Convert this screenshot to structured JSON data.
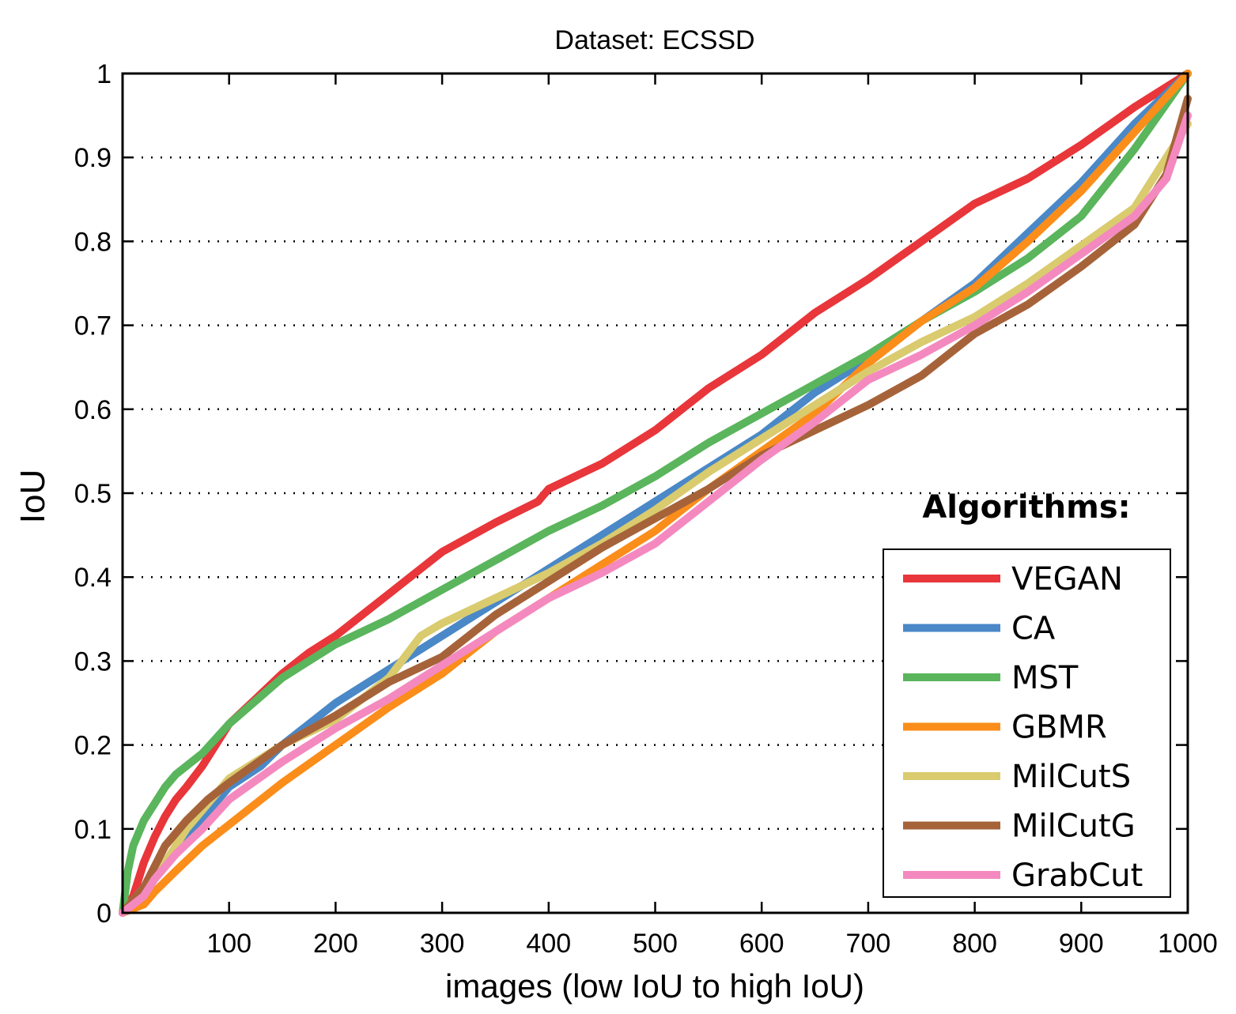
{
  "chart_data": {
    "type": "line",
    "title": "Dataset: ECSSD",
    "xlabel": "images (low IoU to high IoU)",
    "ylabel": "IoU",
    "xlim": [
      0,
      1000
    ],
    "ylim": [
      0,
      1
    ],
    "xticks": [
      100,
      200,
      300,
      400,
      500,
      600,
      700,
      800,
      900,
      1000
    ],
    "yticks": [
      0,
      0.1,
      0.2,
      0.3,
      0.4,
      0.5,
      0.6,
      0.7,
      0.8,
      0.9,
      1
    ],
    "ytick_labels": [
      "0",
      "0.1",
      "0.2",
      "0.3",
      "0.4",
      "0.5",
      "0.6",
      "0.7",
      "0.8",
      "0.9",
      "1"
    ],
    "grid": "horizontal-dotted",
    "legend_title": "Algorithms:",
    "legend_position": "bottom-right",
    "series": [
      {
        "name": "VEGAN",
        "color": "#e8363a",
        "x": [
          0,
          10,
          20,
          30,
          40,
          50,
          60,
          75,
          100,
          125,
          150,
          175,
          200,
          250,
          300,
          350,
          390,
          400,
          450,
          500,
          550,
          600,
          650,
          700,
          750,
          800,
          850,
          900,
          950,
          1000
        ],
        "y": [
          0,
          0.02,
          0.06,
          0.09,
          0.115,
          0.135,
          0.15,
          0.175,
          0.225,
          0.255,
          0.285,
          0.31,
          0.33,
          0.38,
          0.43,
          0.465,
          0.49,
          0.505,
          0.535,
          0.575,
          0.625,
          0.665,
          0.715,
          0.755,
          0.8,
          0.845,
          0.875,
          0.915,
          0.96,
          1.0
        ]
      },
      {
        "name": "CA",
        "color": "#4a88c7",
        "x": [
          0,
          20,
          40,
          60,
          80,
          100,
          130,
          150,
          200,
          250,
          300,
          350,
          400,
          450,
          500,
          550,
          600,
          650,
          700,
          750,
          800,
          850,
          900,
          950,
          1000
        ],
        "y": [
          0,
          0.03,
          0.06,
          0.09,
          0.12,
          0.15,
          0.175,
          0.2,
          0.25,
          0.29,
          0.33,
          0.37,
          0.41,
          0.45,
          0.49,
          0.53,
          0.57,
          0.62,
          0.66,
          0.705,
          0.75,
          0.81,
          0.87,
          0.94,
          1.0
        ]
      },
      {
        "name": "MST",
        "color": "#5ab55c",
        "x": [
          0,
          5,
          10,
          20,
          30,
          40,
          50,
          75,
          100,
          150,
          200,
          250,
          300,
          350,
          400,
          450,
          500,
          550,
          600,
          650,
          700,
          750,
          800,
          850,
          900,
          950,
          1000
        ],
        "y": [
          0,
          0.05,
          0.08,
          0.11,
          0.13,
          0.15,
          0.165,
          0.19,
          0.225,
          0.28,
          0.32,
          0.35,
          0.385,
          0.42,
          0.455,
          0.485,
          0.52,
          0.56,
          0.595,
          0.63,
          0.665,
          0.705,
          0.74,
          0.78,
          0.83,
          0.91,
          1.0
        ]
      },
      {
        "name": "GBMR",
        "color": "#fb8d1a",
        "x": [
          0,
          20,
          30,
          50,
          75,
          100,
          150,
          200,
          250,
          300,
          350,
          400,
          450,
          500,
          550,
          600,
          650,
          700,
          750,
          800,
          850,
          900,
          950,
          1000
        ],
        "y": [
          0,
          0.01,
          0.025,
          0.05,
          0.08,
          0.105,
          0.155,
          0.2,
          0.245,
          0.285,
          0.335,
          0.375,
          0.415,
          0.455,
          0.505,
          0.55,
          0.595,
          0.655,
          0.705,
          0.745,
          0.8,
          0.86,
          0.93,
          1.0
        ]
      },
      {
        "name": "MilCutS",
        "color": "#d9cb6e",
        "x": [
          0,
          20,
          40,
          60,
          80,
          100,
          150,
          200,
          250,
          280,
          300,
          350,
          400,
          450,
          500,
          550,
          600,
          650,
          700,
          750,
          800,
          850,
          900,
          950,
          980,
          1000
        ],
        "y": [
          0,
          0.03,
          0.06,
          0.1,
          0.13,
          0.16,
          0.2,
          0.23,
          0.28,
          0.33,
          0.345,
          0.375,
          0.405,
          0.44,
          0.48,
          0.525,
          0.565,
          0.605,
          0.645,
          0.68,
          0.71,
          0.75,
          0.795,
          0.84,
          0.9,
          0.94
        ]
      },
      {
        "name": "MilCutG",
        "color": "#a6633a",
        "x": [
          0,
          20,
          40,
          60,
          80,
          100,
          150,
          200,
          250,
          300,
          350,
          400,
          450,
          500,
          550,
          600,
          650,
          700,
          750,
          800,
          850,
          900,
          950,
          980,
          1000
        ],
        "y": [
          0,
          0.03,
          0.08,
          0.11,
          0.135,
          0.155,
          0.2,
          0.235,
          0.275,
          0.305,
          0.355,
          0.395,
          0.435,
          0.47,
          0.505,
          0.545,
          0.575,
          0.605,
          0.64,
          0.69,
          0.725,
          0.77,
          0.82,
          0.88,
          0.97
        ]
      },
      {
        "name": "GrabCut",
        "color": "#f489bf",
        "x": [
          0,
          20,
          30,
          50,
          75,
          100,
          150,
          200,
          250,
          300,
          350,
          400,
          450,
          500,
          550,
          600,
          650,
          700,
          750,
          800,
          850,
          900,
          950,
          980,
          1000
        ],
        "y": [
          0,
          0.02,
          0.04,
          0.07,
          0.1,
          0.135,
          0.18,
          0.22,
          0.255,
          0.295,
          0.335,
          0.375,
          0.405,
          0.44,
          0.49,
          0.54,
          0.585,
          0.635,
          0.665,
          0.7,
          0.74,
          0.785,
          0.83,
          0.875,
          0.95
        ]
      }
    ]
  }
}
